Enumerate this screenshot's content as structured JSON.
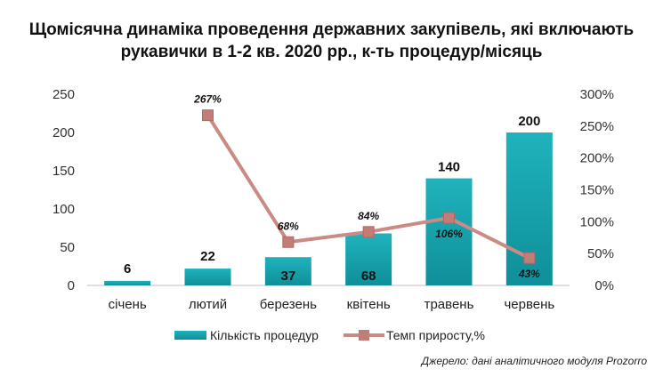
{
  "title_line1": "Щомісячна динаміка проведення державних закупівель, які включають",
  "title_line2": "рукавички в 1-2 кв. 2020 рр., к-ть процедур/місяць",
  "source": "Джерело: дані аналітичного модуля Prozorro",
  "colors": {
    "bars": "#1aa3ad",
    "line": "#c98b84",
    "marker": "#c27d76"
  },
  "chart_data": {
    "type": "bar+line",
    "categories": [
      "січень",
      "лютий",
      "березень",
      "квітень",
      "травень",
      "червень"
    ],
    "series": [
      {
        "name": "Кількість процедур",
        "type": "bar",
        "axis": "left",
        "values": [
          6,
          22,
          37,
          68,
          140,
          200
        ],
        "labels": [
          "6",
          "22",
          "37",
          "68",
          "140",
          "200"
        ]
      },
      {
        "name": "Темп приросту,%",
        "type": "line",
        "axis": "right",
        "values": [
          null,
          267,
          68,
          84,
          106,
          43
        ],
        "labels": [
          "",
          "267%",
          "68%",
          "84%",
          "106%",
          "43%"
        ]
      }
    ],
    "y_left": {
      "min": 0,
      "max": 250,
      "ticks": [
        "0",
        "50",
        "100",
        "150",
        "200",
        "250"
      ]
    },
    "y_right": {
      "min": 0,
      "max": 300,
      "ticks": [
        "0%",
        "50%",
        "100%",
        "150%",
        "200%",
        "250%",
        "300%"
      ]
    },
    "grid": false,
    "legend": "bottom"
  }
}
